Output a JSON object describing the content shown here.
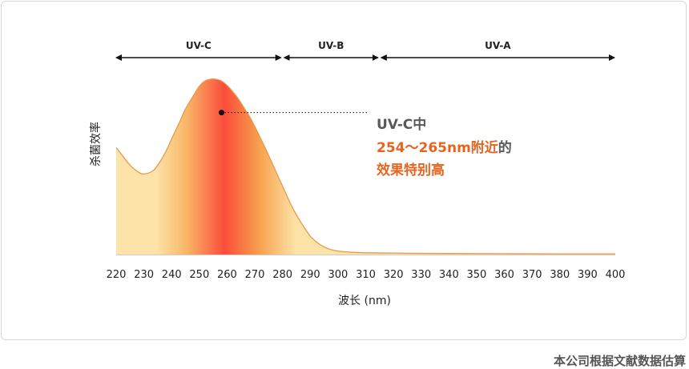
{
  "chart_data": {
    "type": "area",
    "ylabel": "杀菌效率",
    "xlabel": "波长 (nm)",
    "x_ticks": [
      220,
      230,
      240,
      250,
      260,
      270,
      280,
      290,
      300,
      310,
      320,
      330,
      340,
      350,
      360,
      370,
      380,
      390,
      400
    ],
    "xlim": [
      220,
      400
    ],
    "ylim": [
      0,
      1
    ],
    "series": [
      {
        "x": [
          220,
          222,
          225,
          228,
          230,
          233,
          235,
          238,
          240,
          243,
          245,
          248,
          250,
          252,
          254,
          256,
          258,
          260,
          262,
          264,
          266,
          268,
          270,
          272,
          274,
          276,
          278,
          280,
          282,
          284,
          286,
          288,
          290,
          292,
          294,
          296,
          298,
          300,
          305,
          310,
          320,
          340,
          360,
          380,
          400
        ],
        "y": [
          0.61,
          0.57,
          0.51,
          0.47,
          0.46,
          0.475,
          0.51,
          0.59,
          0.66,
          0.76,
          0.83,
          0.91,
          0.96,
          0.99,
          1.0,
          1.0,
          0.99,
          0.965,
          0.93,
          0.89,
          0.84,
          0.79,
          0.73,
          0.665,
          0.6,
          0.53,
          0.46,
          0.39,
          0.32,
          0.255,
          0.2,
          0.15,
          0.105,
          0.075,
          0.052,
          0.036,
          0.026,
          0.02,
          0.013,
          0.01,
          0.008,
          0.006,
          0.005,
          0.004,
          0.004
        ]
      }
    ],
    "bands": [
      {
        "label": "UV-C",
        "from": 220,
        "to": 280
      },
      {
        "label": "UV-B",
        "from": 280,
        "to": 315
      },
      {
        "label": "UV-A",
        "from": 315,
        "to": 400
      }
    ],
    "annotation": {
      "point_x": 258,
      "point_y": 0.81,
      "line1": "UV-C中",
      "line2_highlight": "254～265nm附近",
      "line2_rest": "的",
      "line3": "效果特别高"
    },
    "source_note": "本公司根据文献数据估算",
    "colors": {
      "fill_light": "#fde3a8",
      "fill_peak": "#fa4d3b",
      "fill_mid": "#f7a44f",
      "curve": "#e79a4c",
      "highlight_text": "#e8641e",
      "gray_text": "#5a5a5a"
    }
  }
}
